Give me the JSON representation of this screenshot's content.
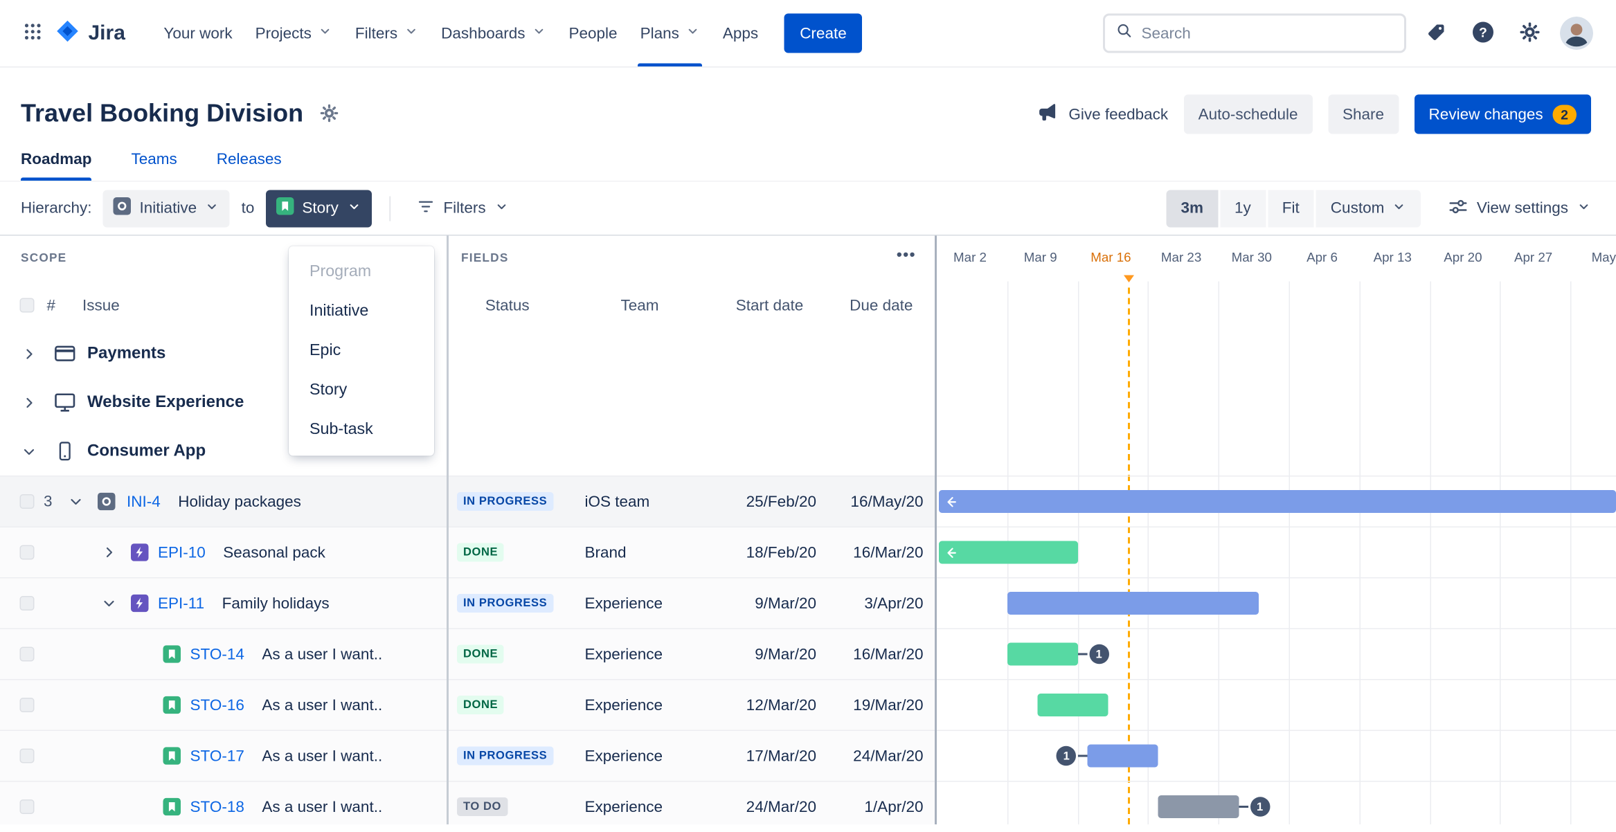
{
  "topnav": {
    "logo_text": "Jira",
    "items": [
      {
        "label": "Your work",
        "has_dropdown": false
      },
      {
        "label": "Projects",
        "has_dropdown": true
      },
      {
        "label": "Filters",
        "has_dropdown": true
      },
      {
        "label": "Dashboards",
        "has_dropdown": true
      },
      {
        "label": "People",
        "has_dropdown": false
      },
      {
        "label": "Plans",
        "has_dropdown": true,
        "active": true
      },
      {
        "label": "Apps",
        "has_dropdown": false
      }
    ],
    "create_label": "Create",
    "search_placeholder": "Search"
  },
  "header": {
    "title": "Travel Booking Division",
    "give_feedback": "Give feedback",
    "auto_schedule": "Auto-schedule",
    "share": "Share",
    "review_changes": "Review changes",
    "review_badge": "2"
  },
  "tabs": [
    {
      "label": "Roadmap",
      "active": true
    },
    {
      "label": "Teams",
      "active": false
    },
    {
      "label": "Releases",
      "active": false
    }
  ],
  "toolbar": {
    "hierarchy_label": "Hierarchy:",
    "from_level": "Initiative",
    "to_word": "to",
    "to_level": "Story",
    "filters_label": "Filters",
    "zoom": [
      {
        "label": "3m",
        "selected": true
      },
      {
        "label": "1y",
        "selected": false
      },
      {
        "label": "Fit",
        "selected": false
      },
      {
        "label": "Custom",
        "selected": false,
        "has_dropdown": true
      }
    ],
    "view_settings_label": "View settings"
  },
  "hierarchy_menu": {
    "items": [
      {
        "label": "Program",
        "disabled": true
      },
      {
        "label": "Initiative",
        "disabled": false
      },
      {
        "label": "Epic",
        "disabled": false
      },
      {
        "label": "Story",
        "disabled": false
      },
      {
        "label": "Sub-task",
        "disabled": false
      }
    ]
  },
  "scope": {
    "section_label": "SCOPE",
    "number_col": "#",
    "issue_col": "Issue"
  },
  "fields": {
    "section_label": "FIELDS",
    "columns": [
      "Status",
      "Team",
      "Start date",
      "Due date"
    ]
  },
  "timeline": {
    "weeks": [
      {
        "label": "Mar 2",
        "current": false
      },
      {
        "label": "Mar 9",
        "current": false
      },
      {
        "label": "Mar 16",
        "current": true
      },
      {
        "label": "Mar 23",
        "current": false
      },
      {
        "label": "Mar 30",
        "current": false
      },
      {
        "label": "Apr 6",
        "current": false
      },
      {
        "label": "Apr 13",
        "current": false
      },
      {
        "label": "Apr 20",
        "current": false
      },
      {
        "label": "Apr 27",
        "current": false
      },
      {
        "label": "May",
        "current": false
      }
    ],
    "today_date": "21/Mar/20"
  },
  "groups": [
    {
      "label": "Payments",
      "icon": "credit-card",
      "expanded": false
    },
    {
      "label": "Website Experience",
      "icon": "monitor",
      "expanded": false
    },
    {
      "label": "Consumer App",
      "icon": "mobile",
      "expanded": true
    }
  ],
  "issues": [
    {
      "level": 0,
      "count": "3",
      "chevron": "down",
      "type": "initiative",
      "key": "INI-4",
      "summary": "Holiday packages",
      "status": {
        "label": "IN PROGRESS",
        "kind": "inprogress"
      },
      "team": "iOS team",
      "start": "25/Feb/20",
      "due": "16/May/20",
      "bar": {
        "color": "blue",
        "from": "25/Feb/20",
        "to": "16/May/20",
        "clip_left": true
      }
    },
    {
      "level": 1,
      "count": "",
      "chevron": "right",
      "type": "epic",
      "key": "EPI-10",
      "summary": "Seasonal pack",
      "status": {
        "label": "DONE",
        "kind": "done"
      },
      "team": "Brand",
      "start": "18/Feb/20",
      "due": "16/Mar/20",
      "bar": {
        "color": "green",
        "from": "18/Feb/20",
        "to": "16/Mar/20",
        "clip_left": true
      }
    },
    {
      "level": 1,
      "count": "",
      "chevron": "down",
      "type": "epic",
      "key": "EPI-11",
      "summary": "Family holidays",
      "status": {
        "label": "IN PROGRESS",
        "kind": "inprogress"
      },
      "team": "Experience",
      "start": "9/Mar/20",
      "due": "3/Apr/20",
      "bar": {
        "color": "blue",
        "from": "9/Mar/20",
        "to": "3/Apr/20",
        "clip_left": false
      }
    },
    {
      "level": 2,
      "count": "",
      "chevron": "",
      "type": "story",
      "key": "STO-14",
      "summary": "As a user I want..",
      "status": {
        "label": "DONE",
        "kind": "done"
      },
      "team": "Experience",
      "start": "9/Mar/20",
      "due": "16/Mar/20",
      "bar": {
        "color": "green",
        "from": "9/Mar/20",
        "to": "16/Mar/20",
        "clip_left": false,
        "badge": {
          "value": "1",
          "side": "right"
        }
      }
    },
    {
      "level": 2,
      "count": "",
      "chevron": "",
      "type": "story",
      "key": "STO-16",
      "summary": "As a user I want..",
      "status": {
        "label": "DONE",
        "kind": "done"
      },
      "team": "Experience",
      "start": "12/Mar/20",
      "due": "19/Mar/20",
      "bar": {
        "color": "green",
        "from": "12/Mar/20",
        "to": "19/Mar/20",
        "clip_left": false
      }
    },
    {
      "level": 2,
      "count": "",
      "chevron": "",
      "type": "story",
      "key": "STO-17",
      "summary": "As a user I want..",
      "status": {
        "label": "IN PROGRESS",
        "kind": "inprogress"
      },
      "team": "Experience",
      "start": "17/Mar/20",
      "due": "24/Mar/20",
      "bar": {
        "color": "blue",
        "from": "17/Mar/20",
        "to": "24/Mar/20",
        "clip_left": false,
        "badge": {
          "value": "1",
          "side": "left"
        }
      }
    },
    {
      "level": 2,
      "count": "",
      "chevron": "",
      "type": "story",
      "key": "STO-18",
      "summary": "As a user I want..",
      "status": {
        "label": "TO DO",
        "kind": "todo"
      },
      "team": "Experience",
      "start": "24/Mar/20",
      "due": "1/Apr/20",
      "bar": {
        "color": "gray",
        "from": "24/Mar/20",
        "to": "1/Apr/20",
        "clip_left": false,
        "badge": {
          "value": "1",
          "side": "right"
        }
      }
    }
  ],
  "colors": {
    "accent": "#0052CC",
    "link": "#0C66E4",
    "bar_blue": "#7B9CE8",
    "bar_green": "#57D9A3",
    "bar_gray": "#8C97A8",
    "badge_bg": "#44546F",
    "today_line": "#FFAB00",
    "status_inprogress_bg": "#DEEBFF",
    "status_inprogress_fg": "#0747A6",
    "status_done_bg": "#E3FCEF",
    "status_done_fg": "#006644",
    "status_todo_bg": "#DFE1E6",
    "status_todo_fg": "#42526E",
    "review_badge_bg": "#FFAB00"
  },
  "icons": [
    "app-switcher-icon",
    "jira-logo",
    "search-icon",
    "tag-icon",
    "help-icon",
    "gear-icon",
    "avatar",
    "megaphone-icon",
    "initiative-icon",
    "epic-icon",
    "story-icon",
    "credit-card-icon",
    "monitor-icon",
    "mobile-icon",
    "filter-icon",
    "sliders-icon",
    "chevron-down-icon",
    "chevron-right-icon",
    "more-horizontal-icon",
    "today-marker"
  ]
}
